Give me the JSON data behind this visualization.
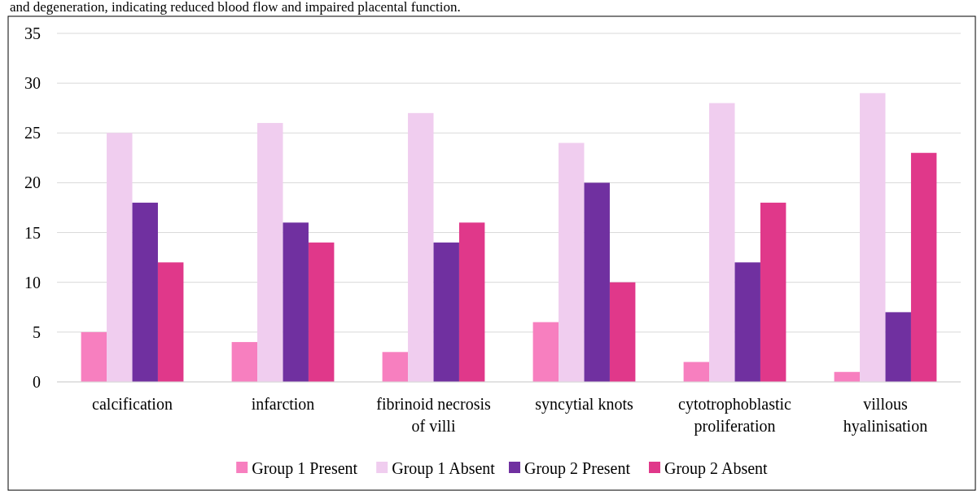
{
  "chart_data": {
    "type": "bar",
    "annotations": [
      "and degeneration, indicating reduced blood flow and impaired placental function."
    ],
    "categories": [
      "calcification",
      "infarction",
      "fibrinoid necrosis of villi",
      "syncytial knots",
      "cytotrophoblastic proliferation",
      "villous hyalinisation"
    ],
    "series": [
      {
        "name": "Group 1 Present",
        "color": "#f77fbf",
        "values": [
          5,
          4,
          3,
          6,
          2,
          1
        ]
      },
      {
        "name": "Group 1 Absent",
        "color": "#f0cdef",
        "values": [
          25,
          26,
          27,
          24,
          28,
          29
        ]
      },
      {
        "name": "Group 2 Present",
        "color": "#7030a0",
        "values": [
          18,
          16,
          14,
          20,
          12,
          7
        ]
      },
      {
        "name": "Group 2 Absent",
        "color": "#e0388a",
        "values": [
          12,
          14,
          16,
          10,
          18,
          23
        ]
      }
    ],
    "ylim": [
      0,
      35
    ],
    "yticks": [
      0,
      5,
      10,
      15,
      20,
      25,
      30,
      35
    ],
    "grid": "y",
    "legend": "bottom"
  }
}
